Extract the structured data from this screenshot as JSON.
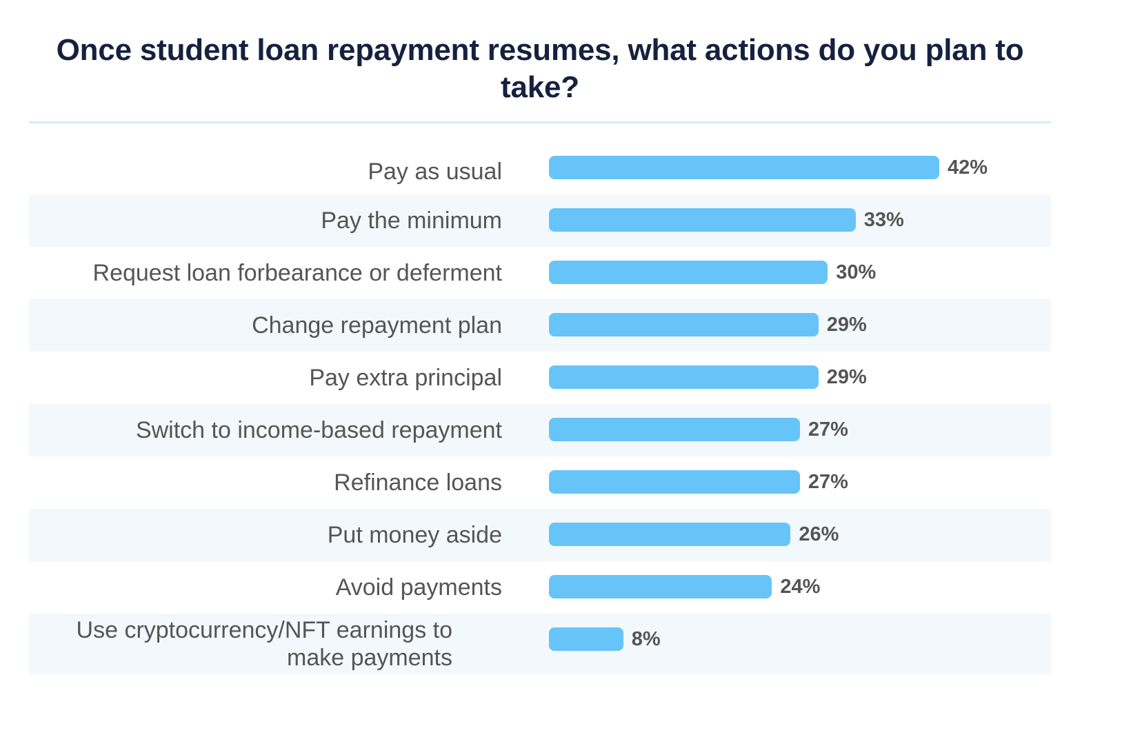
{
  "chart_data": {
    "type": "bar",
    "orientation": "horizontal",
    "title": "Once student loan repayment resumes, what actions do you plan to take?",
    "categories": [
      "Pay as usual",
      "Pay the minimum",
      "Request loan forbearance or deferment",
      "Change repayment plan",
      "Pay extra principal",
      "Switch to income-based repayment",
      "Refinance loans",
      "Put money aside",
      "Avoid payments",
      "Use cryptocurrency/NFT earnings to make payments"
    ],
    "values": [
      42,
      33,
      30,
      29,
      29,
      27,
      27,
      26,
      24,
      8
    ],
    "value_labels": [
      "42%",
      "33%",
      "30%",
      "29%",
      "29%",
      "27%",
      "27%",
      "26%",
      "24%",
      "8%"
    ],
    "unit": "%",
    "bar_color": "#66c4f8",
    "alternate_row_color": "#f3f8fc",
    "title_color": "#16213f",
    "text_color": "#555555",
    "divider_color": "#d3edfa",
    "grid": false,
    "legend": "none"
  }
}
